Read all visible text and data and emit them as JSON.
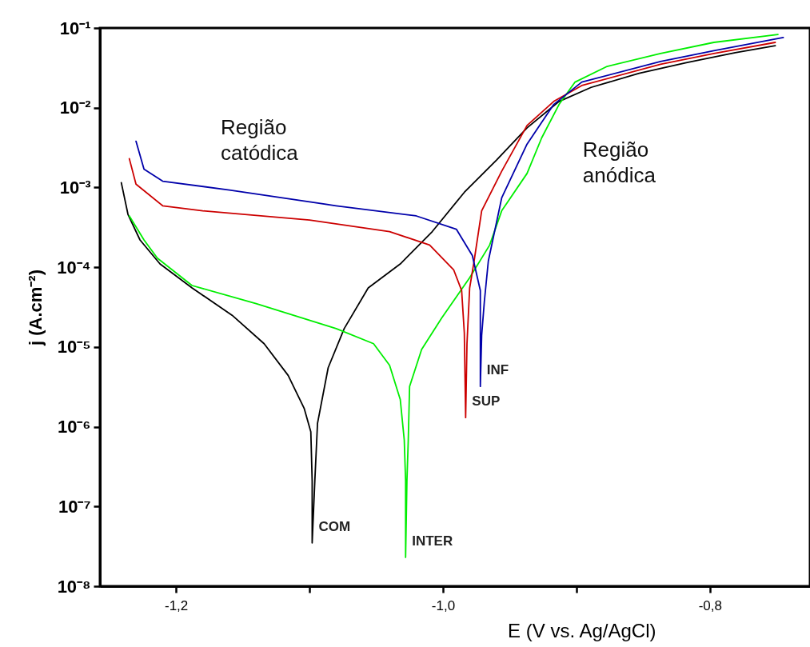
{
  "chart_data": {
    "type": "line",
    "xlabel": "E (V vs. Ag/AgCl)",
    "ylabel": "j (A.cm⁻²)",
    "log": "y",
    "marker": "none",
    "line_style": "solid",
    "xlim": [
      -1.257,
      -0.725
    ],
    "ylim": [
      1e-08,
      0.1
    ],
    "xticks": [
      {
        "value": -1.2,
        "label": "-1,2"
      },
      {
        "value": -1.1,
        "label": null
      },
      {
        "value": -1.0,
        "label": "-1,0"
      },
      {
        "value": -0.9,
        "label": null
      },
      {
        "value": -0.8,
        "label": "-0,8"
      }
    ],
    "yticks": [
      {
        "value": 1e-08,
        "label": "10⁻⁸"
      },
      {
        "value": 1e-07,
        "label": "10⁻⁷"
      },
      {
        "value": 1e-06,
        "label": "10⁻⁶"
      },
      {
        "value": 1e-05,
        "label": "10⁻⁵"
      },
      {
        "value": 0.0001,
        "label": "10⁻⁴"
      },
      {
        "value": 0.001,
        "label": "10⁻³"
      },
      {
        "value": 0.01,
        "label": "10⁻²"
      },
      {
        "value": 0.1,
        "label": "10⁻¹"
      }
    ],
    "annotations": [
      "Região\ncatódica",
      "Região\nanódica"
    ],
    "series": [
      {
        "name": "COM",
        "color": "#000000",
        "x": [
          -1.241,
          -1.236,
          -1.227,
          -1.212,
          -1.188,
          -1.158,
          -1.134,
          -1.116,
          -1.104,
          -1.099,
          -1.098,
          -1.098,
          -1.096,
          -1.094,
          -1.086,
          -1.074,
          -1.056,
          -1.032,
          -1.008,
          -0.984,
          -0.96,
          -0.937,
          -0.913,
          -0.889,
          -0.853,
          -0.817,
          -0.781,
          -0.751
        ],
        "values": [
          0.00115,
          0.00046,
          0.00022,
          0.00011,
          5.5e-05,
          2.5e-05,
          1.1e-05,
          4.4e-06,
          1.7e-06,
          8.6e-07,
          2.1e-07,
          3.5e-08,
          2.1e-07,
          1.1e-06,
          5.5e-06,
          1.7e-05,
          5.5e-05,
          0.00011,
          0.00028,
          0.00087,
          0.0022,
          0.0056,
          0.012,
          0.018,
          0.027,
          0.037,
          0.049,
          0.06
        ]
      },
      {
        "name": "INTER",
        "color": "#00ee00",
        "x": [
          -1.235,
          -1.224,
          -1.214,
          -1.188,
          -1.14,
          -1.08,
          -1.052,
          -1.04,
          -1.032,
          -1.029,
          -1.028,
          -1.028,
          -1.027,
          -1.026,
          -1.025,
          -1.016,
          -1.001,
          -0.98,
          -0.965,
          -0.956,
          -0.937,
          -0.926,
          -0.913,
          -0.901,
          -0.877,
          -0.837,
          -0.797,
          -0.749
        ],
        "values": [
          0.00044,
          0.00022,
          0.00013,
          5.9e-05,
          3.5e-05,
          1.7e-05,
          1.1e-05,
          5.9e-06,
          2.2e-06,
          6.8e-07,
          2.1e-07,
          2.3e-08,
          2.1e-07,
          6.8e-07,
          3.2e-06,
          9.3e-06,
          2.3e-05,
          7.4e-05,
          0.00019,
          0.00051,
          0.0015,
          0.0042,
          0.011,
          0.021,
          0.033,
          0.048,
          0.066,
          0.083
        ]
      },
      {
        "name": "SUP",
        "color": "#cc0000",
        "x": [
          -1.235,
          -1.23,
          -1.21,
          -1.18,
          -1.1,
          -1.04,
          -1.01,
          -0.992,
          -0.986,
          -0.984,
          -0.983,
          -0.982,
          -0.98,
          -0.977,
          -0.971,
          -0.956,
          -0.937,
          -0.917,
          -0.896,
          -0.837,
          -0.797,
          -0.751
        ],
        "values": [
          0.0023,
          0.0011,
          0.00059,
          0.00051,
          0.00039,
          0.00028,
          0.00019,
          9.3e-05,
          5.1e-05,
          1.5e-05,
          1.3e-06,
          1.1e-05,
          5.5e-05,
          0.00011,
          0.00051,
          0.0016,
          0.006,
          0.012,
          0.019,
          0.035,
          0.048,
          0.066
        ]
      },
      {
        "name": "INF",
        "color": "#0000aa",
        "x": [
          -1.23,
          -1.224,
          -1.21,
          -1.16,
          -1.08,
          -1.02,
          -0.99,
          -0.978,
          -0.972,
          -0.972,
          -0.972,
          -0.971,
          -0.969,
          -0.966,
          -0.956,
          -0.937,
          -0.917,
          -0.896,
          -0.837,
          -0.797,
          -0.745
        ],
        "values": [
          0.0038,
          0.0017,
          0.0012,
          0.00093,
          0.00059,
          0.00044,
          0.0003,
          0.00014,
          5.1e-05,
          1.4e-05,
          3.2e-06,
          1.4e-05,
          3.7e-05,
          0.00012,
          0.00074,
          0.0035,
          0.011,
          0.021,
          0.038,
          0.052,
          0.076
        ]
      }
    ]
  }
}
